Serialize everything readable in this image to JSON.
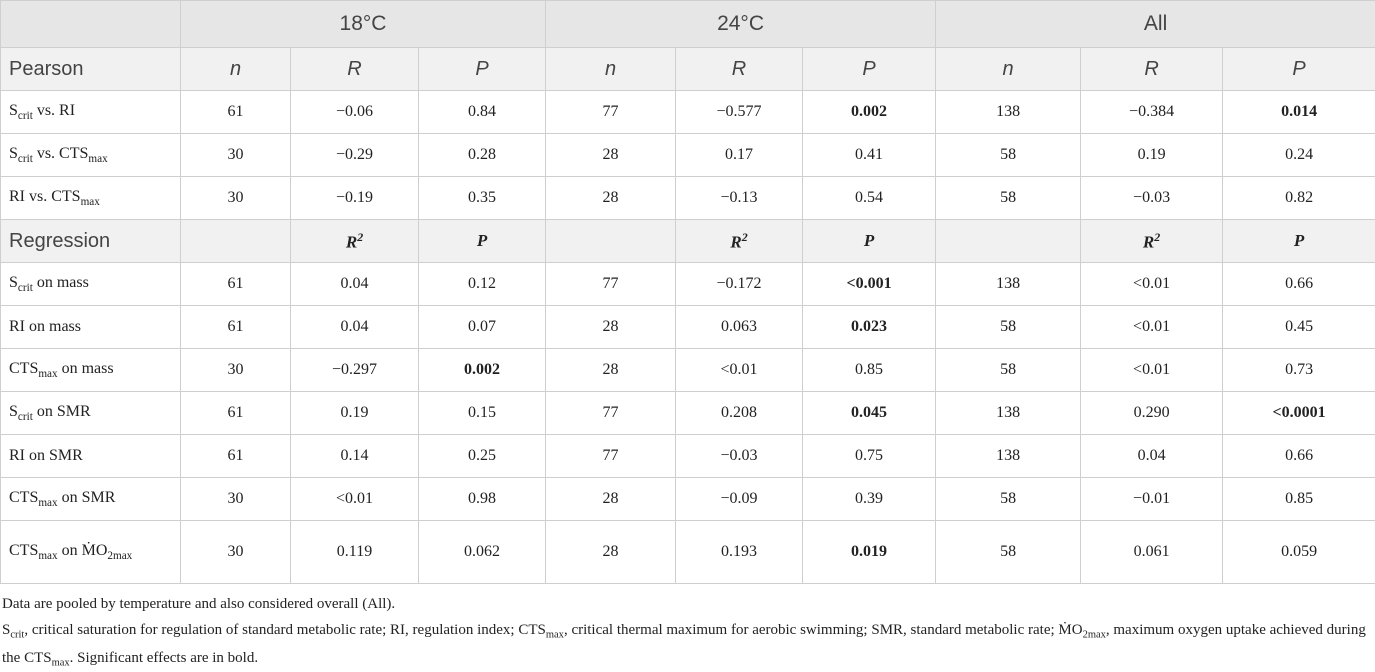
{
  "table": {
    "groups": [
      "18°C",
      "24°C",
      "All"
    ],
    "sections": [
      {
        "name": "Pearson",
        "columns": [
          [
            {
              "text": "n"
            }
          ],
          [
            {
              "text": "R"
            }
          ],
          [
            {
              "text": "P"
            }
          ],
          [
            {
              "text": "n"
            }
          ],
          [
            {
              "text": "R"
            }
          ],
          [
            {
              "text": "P"
            }
          ],
          [
            {
              "text": "n"
            }
          ],
          [
            {
              "text": "R"
            }
          ],
          [
            {
              "text": "P"
            }
          ]
        ],
        "rows": [
          {
            "label": [
              {
                "text": "S"
              },
              {
                "sub": "crit"
              },
              {
                "text": " vs. RI"
              }
            ],
            "cells": [
              "61",
              "−0.06",
              "0.84",
              "77",
              "−0.577",
              {
                "text": "0.002",
                "bold": true
              },
              "138",
              "−0.384",
              {
                "text": "0.014",
                "bold": true
              }
            ]
          },
          {
            "label": [
              {
                "text": "S"
              },
              {
                "sub": "crit"
              },
              {
                "text": " vs. CTS"
              },
              {
                "sub": "max"
              }
            ],
            "cells": [
              "30",
              "−0.29",
              "0.28",
              "28",
              "0.17",
              "0.41",
              "58",
              "0.19",
              "0.24"
            ]
          },
          {
            "label": [
              {
                "text": "RI vs. CTS"
              },
              {
                "sub": "max"
              }
            ],
            "cells": [
              "30",
              "−0.19",
              "0.35",
              "28",
              "−0.13",
              "0.54",
              "58",
              "−0.03",
              "0.82"
            ]
          }
        ]
      },
      {
        "name": "Regression",
        "columns": [
          null,
          [
            {
              "text": "R"
            },
            {
              "sup": "2"
            }
          ],
          [
            {
              "text": "P"
            }
          ],
          null,
          [
            {
              "text": "R"
            },
            {
              "sup": "2"
            }
          ],
          [
            {
              "text": "P"
            }
          ],
          null,
          [
            {
              "text": "R"
            },
            {
              "sup": "2"
            }
          ],
          [
            {
              "text": "P"
            }
          ]
        ],
        "rows": [
          {
            "label": [
              {
                "text": "S"
              },
              {
                "sub": "crit"
              },
              {
                "text": " on mass"
              }
            ],
            "cells": [
              "61",
              "0.04",
              "0.12",
              "77",
              "−0.172",
              {
                "text": "<0.001",
                "bold": true
              },
              "138",
              "<0.01",
              "0.66"
            ]
          },
          {
            "label": [
              {
                "text": "RI on mass"
              }
            ],
            "cells": [
              "61",
              "0.04",
              "0.07",
              "28",
              "0.063",
              {
                "text": "0.023",
                "bold": true
              },
              "58",
              "<0.01",
              "0.45"
            ]
          },
          {
            "label": [
              {
                "text": "CTS"
              },
              {
                "sub": "max"
              },
              {
                "text": " on mass"
              }
            ],
            "cells": [
              "30",
              "−0.297",
              {
                "text": "0.002",
                "bold": true
              },
              "28",
              "<0.01",
              "0.85",
              "58",
              "<0.01",
              "0.73"
            ]
          },
          {
            "label": [
              {
                "text": "S"
              },
              {
                "sub": "crit"
              },
              {
                "text": " on SMR"
              }
            ],
            "cells": [
              "61",
              "0.19",
              "0.15",
              "77",
              "0.208",
              {
                "text": "0.045",
                "bold": true
              },
              "138",
              "0.290",
              {
                "text": "<0.0001",
                "bold": true
              }
            ]
          },
          {
            "label": [
              {
                "text": "RI on SMR"
              }
            ],
            "cells": [
              "61",
              "0.14",
              "0.25",
              "77",
              "−0.03",
              "0.75",
              "138",
              "0.04",
              "0.66"
            ]
          },
          {
            "label": [
              {
                "text": "CTS"
              },
              {
                "sub": "max"
              },
              {
                "text": " on SMR"
              }
            ],
            "cells": [
              "30",
              "<0.01",
              "0.98",
              "28",
              "−0.09",
              "0.39",
              "58",
              "−0.01",
              "0.85"
            ]
          },
          {
            "label": [
              {
                "text": "CTS"
              },
              {
                "sub": "max"
              },
              {
                "text": " on Ṁ"
              },
              {
                "text": "O"
              },
              {
                "sub": "2max"
              }
            ],
            "cells": [
              "30",
              "0.119",
              "0.062",
              "28",
              "0.193",
              {
                "text": "0.019",
                "bold": true
              },
              "58",
              "0.061",
              "0.059"
            ]
          }
        ]
      }
    ],
    "notes": [
      [
        {
          "text": "Data are pooled by temperature and also considered overall (All)."
        }
      ],
      [
        {
          "text": "S"
        },
        {
          "sub": "crit"
        },
        {
          "text": ", critical saturation for regulation of standard metabolic rate; RI, regulation index; CTS"
        },
        {
          "sub": "max"
        },
        {
          "text": ", critical thermal maximum for aerobic swimming; SMR, standard metabolic rate; ṀO"
        },
        {
          "sub": "2max"
        },
        {
          "text": ", maximum oxygen uptake achieved during the CTS"
        },
        {
          "sub": "max"
        },
        {
          "text": ". Significant effects are in bold."
        }
      ]
    ]
  }
}
